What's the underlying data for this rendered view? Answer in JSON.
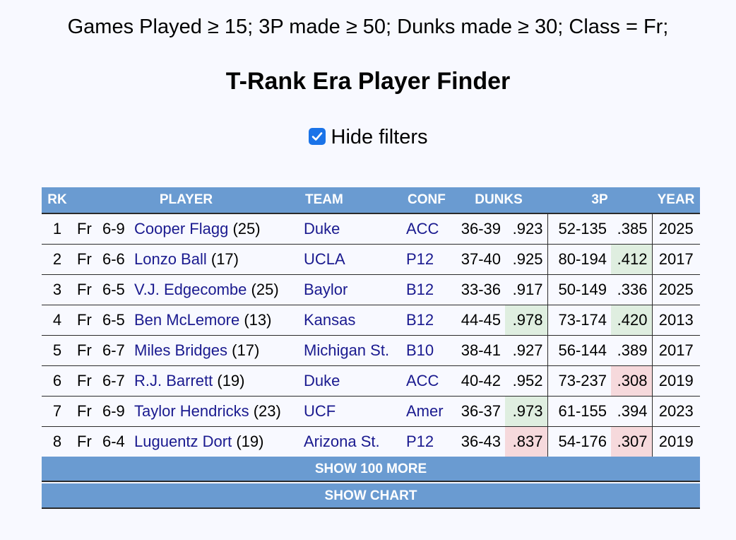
{
  "filter_summary": "Games Played ≥ 15; 3P made ≥ 50; Dunks made ≥ 30; Class = Fr;",
  "title": "T-Rank Era Player Finder",
  "hide_filters": {
    "label": "Hide filters",
    "checked": true
  },
  "columns": {
    "rk": "RK",
    "player": "PLAYER",
    "team": "TEAM",
    "conf": "CONF",
    "dunks": "DUNKS",
    "three": "3P",
    "year": "YEAR"
  },
  "rows": [
    {
      "rk": "1",
      "cls": "Fr",
      "ht": "6-9",
      "name": "Cooper Flagg",
      "num": "(25)",
      "team": "Duke",
      "conf": "ACC",
      "dunks": "36-39",
      "dunk_pct": ".923",
      "three": "52-135",
      "three_pct": ".385",
      "year": "2025"
    },
    {
      "rk": "2",
      "cls": "Fr",
      "ht": "6-6",
      "name": "Lonzo Ball",
      "num": "(17)",
      "team": "UCLA",
      "conf": "P12",
      "dunks": "37-40",
      "dunk_pct": ".925",
      "three": "80-194",
      "three_pct": ".412",
      "year": "2017"
    },
    {
      "rk": "3",
      "cls": "Fr",
      "ht": "6-5",
      "name": "V.J. Edgecombe",
      "num": "(25)",
      "team": "Baylor",
      "conf": "B12",
      "dunks": "33-36",
      "dunk_pct": ".917",
      "three": "50-149",
      "three_pct": ".336",
      "year": "2025"
    },
    {
      "rk": "4",
      "cls": "Fr",
      "ht": "6-5",
      "name": "Ben McLemore",
      "num": "(13)",
      "team": "Kansas",
      "conf": "B12",
      "dunks": "44-45",
      "dunk_pct": ".978",
      "three": "73-174",
      "three_pct": ".420",
      "year": "2013"
    },
    {
      "rk": "5",
      "cls": "Fr",
      "ht": "6-7",
      "name": "Miles Bridges",
      "num": "(17)",
      "team": "Michigan St.",
      "conf": "B10",
      "dunks": "38-41",
      "dunk_pct": ".927",
      "three": "56-144",
      "three_pct": ".389",
      "year": "2017"
    },
    {
      "rk": "6",
      "cls": "Fr",
      "ht": "6-7",
      "name": "R.J. Barrett",
      "num": "(19)",
      "team": "Duke",
      "conf": "ACC",
      "dunks": "40-42",
      "dunk_pct": ".952",
      "three": "73-237",
      "three_pct": ".308",
      "year": "2019"
    },
    {
      "rk": "7",
      "cls": "Fr",
      "ht": "6-9",
      "name": "Taylor Hendricks",
      "num": "(23)",
      "team": "UCF",
      "conf": "Amer",
      "dunks": "36-37",
      "dunk_pct": ".973",
      "three": "61-155",
      "three_pct": ".394",
      "year": "2023"
    },
    {
      "rk": "8",
      "cls": "Fr",
      "ht": "6-4",
      "name": "Luguentz Dort",
      "num": "(19)",
      "team": "Arizona St.",
      "conf": "P12",
      "dunks": "36-43",
      "dunk_pct": ".837",
      "three": "54-176",
      "three_pct": ".307",
      "year": "2019"
    }
  ],
  "actions": {
    "show_more": "SHOW 100 MORE",
    "show_chart": "SHOW CHART"
  },
  "colors": {
    "header_bg": "#6a9bd1",
    "link": "#1a1a8f",
    "good_cell": "#dfeee0",
    "bad_cell": "#f6d9dc",
    "checkbox": "#1a73e8"
  }
}
